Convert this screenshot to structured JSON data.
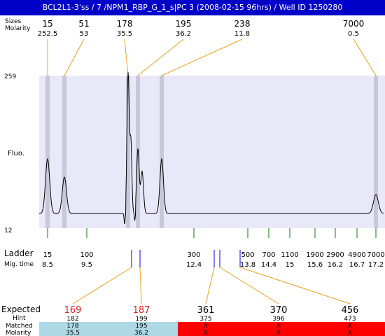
{
  "title": "BCL2L1-3'ss / 7 /NPM1_RBP_G_1_s|PC 3 (2008-02-15 96hrs) / Well ID 1250280",
  "top_labels": {
    "sizes_label": "Sizes",
    "molarity_label": "Molarity"
  },
  "y_axis": {
    "label": "Fluo.",
    "max_tick": "259",
    "min_tick": "12"
  },
  "ladder_labels": {
    "ladder_label": "Ladder",
    "migtime_label": "Mig. time"
  },
  "bottom_labels": {
    "expected_label": "Expected",
    "hint_label": "Hint",
    "matched_label": "Matched",
    "molarity_label": "Molarity"
  },
  "colors": {
    "title_bg": "#0000c8",
    "plot_bg": "#e8e8f8",
    "band": "#c8c8d8",
    "orange": "#f0a020",
    "green": "#008000",
    "blue": "#0000ff",
    "red_text": "#e02020",
    "matched_bg": "#add8e6",
    "unmatched_bg": "#ff0000"
  },
  "chart_data": {
    "type": "line",
    "y_range": [
      12,
      259
    ],
    "peaks": [
      {
        "size": "15",
        "molarity": "252.5"
      },
      {
        "size": "51",
        "molarity": "53"
      },
      {
        "size": "178",
        "molarity": "35.5"
      },
      {
        "size": "195",
        "molarity": "36.2"
      },
      {
        "size": "238",
        "molarity": "11.8"
      },
      {
        "size": "7000",
        "molarity": "0.5"
      }
    ],
    "ladder": [
      {
        "size": "15",
        "mig_time": "8.5"
      },
      {
        "size": "100",
        "mig_time": "9.5"
      },
      {
        "size": "300",
        "mig_time": "12.4"
      },
      {
        "size": "500",
        "mig_time": "13.8"
      },
      {
        "size": "700",
        "mig_time": "14.4"
      },
      {
        "size": "1100",
        "mig_time": "15"
      },
      {
        "size": "1900",
        "mig_time": "15.6"
      },
      {
        "size": "2900",
        "mig_time": "16.2"
      },
      {
        "size": "4900",
        "mig_time": "16.7"
      },
      {
        "size": "7000",
        "mig_time": "17.2"
      }
    ],
    "expected": [
      {
        "expected": "169",
        "hint": "182",
        "matched": "178",
        "molarity": "35.5",
        "found": true
      },
      {
        "expected": "187",
        "hint": "199",
        "matched": "195",
        "molarity": "36.2",
        "found": true
      },
      {
        "expected": "361",
        "hint": "375",
        "matched": "X",
        "molarity": "X",
        "found": false
      },
      {
        "expected": "370",
        "hint": "396",
        "matched": "X",
        "molarity": "X",
        "found": false
      },
      {
        "expected": "456",
        "hint": "473",
        "matched": "X",
        "molarity": "X",
        "found": false
      }
    ]
  }
}
